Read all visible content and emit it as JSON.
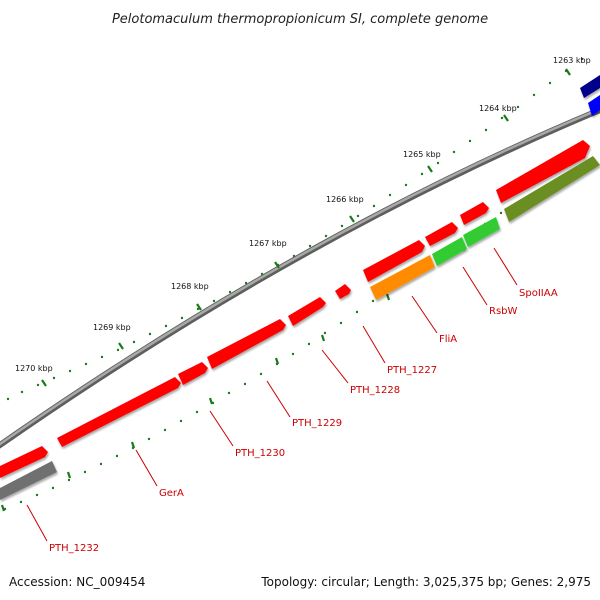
{
  "title": "Pelotomaculum thermopropionicum SI, complete genome",
  "accession": "Accession: NC_009454",
  "summary": "Topology: circular; Length: 3,025,375 bp; Genes: 2,975",
  "colors": {
    "backbone": "#8a8a8a",
    "tick": "#1a7a1a",
    "label": "#cc0000",
    "leader": "#cc0000",
    "cds_red": "#ff0000",
    "cds_orange": "#ff8c00",
    "cds_green": "#33cc33",
    "cds_olive": "#6b8e23",
    "cds_gray": "#707070",
    "cds_navy": "#00008b",
    "cds_blue": "#0000ff"
  },
  "ruler": [
    {
      "label": "1263 kbp"
    },
    {
      "label": "1264 kbp"
    },
    {
      "label": "1265 kbp"
    },
    {
      "label": "1266 kbp"
    },
    {
      "label": "1267 kbp"
    },
    {
      "label": "1268 kbp"
    },
    {
      "label": "1269 kbp"
    },
    {
      "label": "1270 kbp"
    }
  ],
  "gene_labels": [
    {
      "name": "SpoIIAA"
    },
    {
      "name": "RsbW"
    },
    {
      "name": "FliA"
    },
    {
      "name": "PTH_1227"
    },
    {
      "name": "PTH_1228"
    },
    {
      "name": "PTH_1229"
    },
    {
      "name": "PTH_1230"
    },
    {
      "name": "GerA"
    },
    {
      "name": "PTH_1232"
    }
  ]
}
